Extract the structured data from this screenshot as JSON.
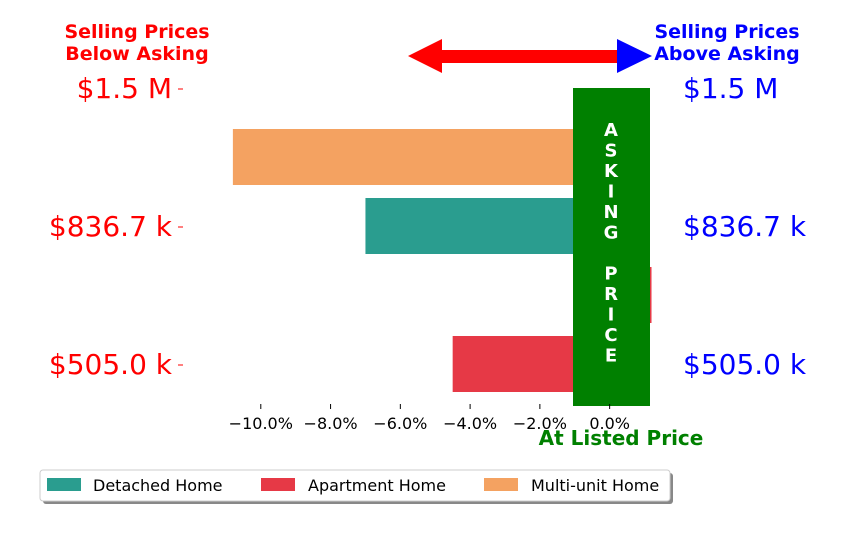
{
  "chart_data": {
    "type": "bar",
    "orientation": "horizontal",
    "x_ticks": [
      "−10.0%",
      "−8.0%",
      "−6.0%",
      "−4.0%",
      "−2.0%",
      "0.0%"
    ],
    "x_tick_values": [
      -10,
      -8,
      -6,
      -4,
      -2,
      0
    ],
    "xlim": [
      -11.8,
      1.3
    ],
    "xlabel": "At Listed Price",
    "left_header": [
      "Selling Prices",
      "Below Asking"
    ],
    "right_header": [
      "Selling Prices",
      "Above Asking"
    ],
    "y_tick_labels": [
      "$1.5 M",
      "$836.7 k",
      "$505.0 k"
    ],
    "asking_price_label": "ASKING PRICE",
    "series": [
      {
        "name": "Detached Home",
        "color": "#2a9d8f",
        "values": [
          -7.0
        ]
      },
      {
        "name": "Apartment Home",
        "color": "#e63946",
        "values": [
          -4.5,
          1.2
        ]
      },
      {
        "name": "Multi-unit Home",
        "color": "#f4a261",
        "values": [
          -10.8
        ]
      }
    ],
    "bars": [
      {
        "series": "Multi-unit Home",
        "value": -10.8,
        "row": 0
      },
      {
        "series": "Detached Home",
        "value": -7.0,
        "row": 1
      },
      {
        "series": "Apartment Home",
        "value": 1.2,
        "row": 2
      },
      {
        "series": "Apartment Home",
        "value": -4.5,
        "row": 3
      }
    ],
    "legend": {
      "placement": "bottom",
      "entries": [
        {
          "label": "Detached Home",
          "color": "#2a9d8f"
        },
        {
          "label": "Apartment Home",
          "color": "#e63946"
        },
        {
          "label": "Multi-unit Home",
          "color": "#f4a261"
        }
      ]
    },
    "colors": {
      "left_text": "#ff0000",
      "right_text": "#0000ff",
      "asking_band": "#008000",
      "xlabel": "#008000",
      "arrow_left": "#ff0000",
      "arrow_right": "#0000ff"
    }
  }
}
